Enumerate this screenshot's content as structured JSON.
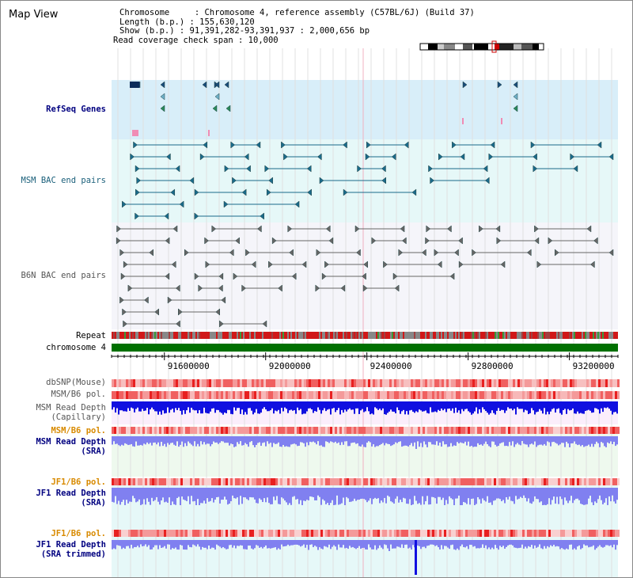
{
  "page": {
    "title": "Map View"
  },
  "info": {
    "chromosome": "Chromosome     : Chromosome 4, reference assembly (C57BL/6J) (Build 37)",
    "length": "Length (b.p.) : 155,630,120",
    "show": "Show (b.p.) : 91,391,282-93,391,937 : 2,000,656 bp",
    "coverage": "Read coverage check span : 10,000"
  },
  "tracks": {
    "refseq": "RefSeq Genes",
    "msm_bac": "MSM BAC end pairs",
    "b6n_bac": "B6N BAC end pairs",
    "repeat": "Repeat",
    "chromosome": "chromosome 4",
    "dbsnp": "dbSNP(Mouse)",
    "msm_b6_pol": "MSM/B6 pol.",
    "msm_depth_cap": "MSM Read Depth\n(Capillary)",
    "msm_b6_pol2": "MSM/B6 pol.",
    "msm_depth_sra": "MSM Read Depth\n(SRA)",
    "jf1_b6_pol": "JF1/B6 pol.",
    "jf1_depth_sra": "JF1 Read Depth\n(SRA)",
    "jf1_b6_pol2": "JF1/B6 pol.",
    "jf1_depth_trim": "JF1 Read Depth\n(SRA trimmed)"
  },
  "axis": {
    "ticks": [
      {
        "pos": 91600000,
        "label": "91600000"
      },
      {
        "pos": 92000000,
        "label": "92000000"
      },
      {
        "pos": 92400000,
        "label": "92400000"
      },
      {
        "pos": 92800000,
        "label": "92800000"
      },
      {
        "pos": 93200000,
        "label": "93200000"
      }
    ]
  },
  "colors": {
    "refseq_bg": "#d8eef9",
    "msm_bg": "#e6f8f8",
    "b6n_bg": "#f5f5fa",
    "chromosome": "#007000",
    "depth_blue": "#1010e0",
    "depth_light": "#8080f0",
    "pol_red": "#f04040"
  }
}
